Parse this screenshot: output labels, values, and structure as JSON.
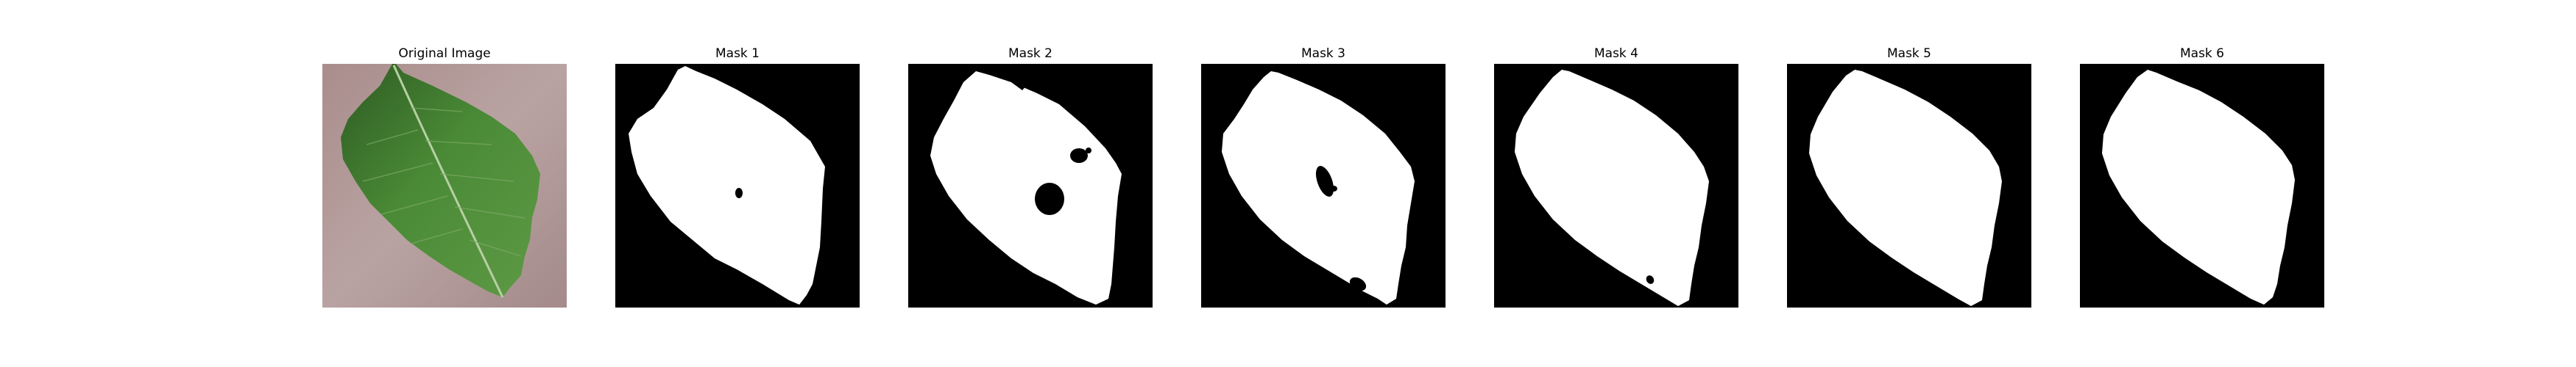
{
  "panels": [
    {
      "title": "Original Image",
      "image": "leaf-photo"
    },
    {
      "title": "Mask 1",
      "image": "leaf-mask"
    },
    {
      "title": "Mask 2",
      "image": "leaf-mask"
    },
    {
      "title": "Mask 3",
      "image": "leaf-mask"
    },
    {
      "title": "Mask 4",
      "image": "leaf-mask"
    },
    {
      "title": "Mask 5",
      "image": "leaf-mask"
    },
    {
      "title": "Mask 6",
      "image": "leaf-mask"
    }
  ],
  "colors": {
    "mask_background": "#000000",
    "mask_foreground": "#ffffff",
    "photo_background": "#b49c9b",
    "leaf_green": "#3f7a30"
  }
}
